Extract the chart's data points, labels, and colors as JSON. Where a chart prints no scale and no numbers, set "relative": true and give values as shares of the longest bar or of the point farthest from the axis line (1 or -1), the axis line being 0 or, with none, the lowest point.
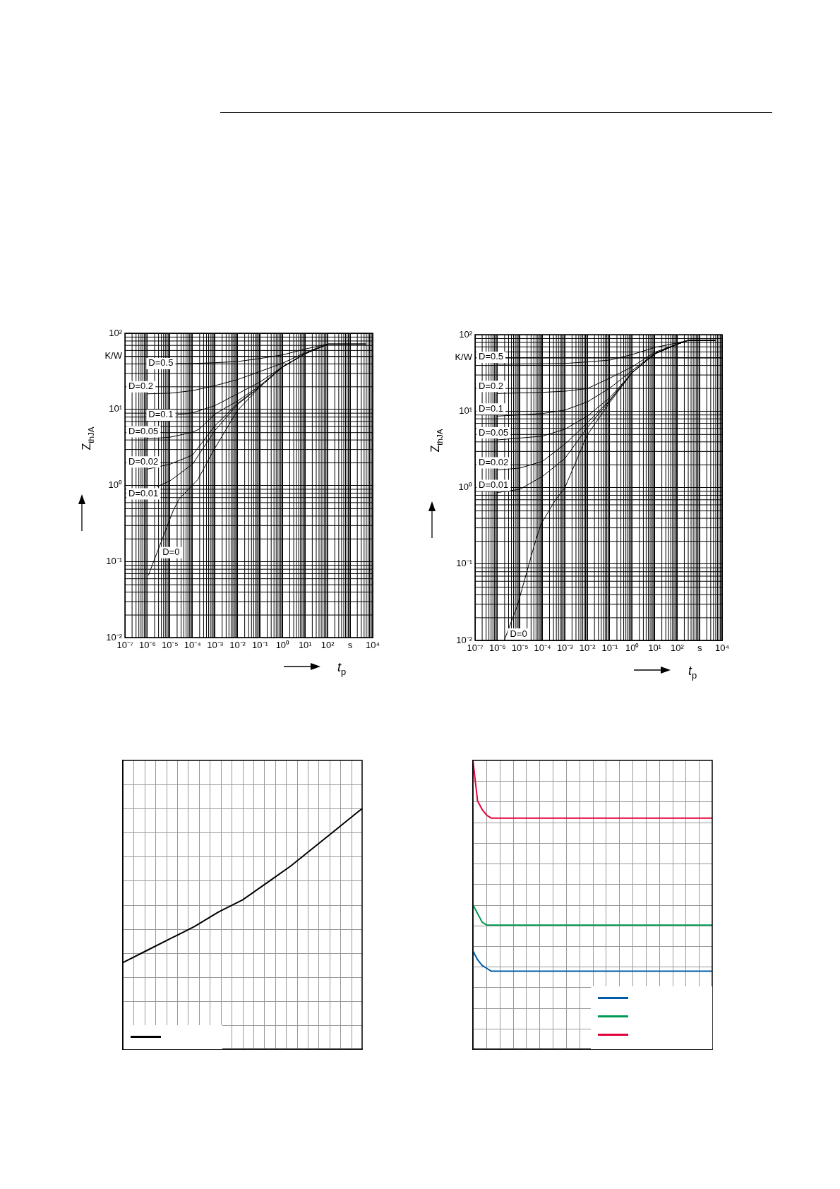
{
  "chart_data": [
    {
      "type": "line",
      "xlabel": "t$_{p}$",
      "ylabel": "Z$_{thJA}$",
      "log": "xy",
      "grid": true,
      "legend": false,
      "marker": "none",
      "xlim": [
        1e-07,
        10000.0
      ],
      "ylim": [
        0.01,
        100
      ],
      "xticks": [
        {
          "value": 1e-07,
          "label": "10⁻⁷"
        },
        {
          "value": 1e-06,
          "label": "10⁻⁶"
        },
        {
          "value": 1e-05,
          "label": "10⁻⁵"
        },
        {
          "value": 0.0001,
          "label": "10⁻⁴"
        },
        {
          "value": 0.001,
          "label": "10⁻³"
        },
        {
          "value": 0.01,
          "label": "10⁻²"
        },
        {
          "value": 0.1,
          "label": "10⁻¹"
        },
        {
          "value": 1,
          "label": "10⁰"
        },
        {
          "value": 10,
          "label": "10¹"
        },
        {
          "value": 100,
          "label": "10²"
        },
        {
          "value": 1000,
          "label": "s"
        },
        {
          "value": 10000.0,
          "label": "10⁴"
        }
      ],
      "yticks": [
        {
          "value": 0.01,
          "label": "10⁻²"
        },
        {
          "value": 0.1,
          "label": "10⁻¹"
        },
        {
          "value": 1,
          "label": "10⁰"
        },
        {
          "value": 10,
          "label": "10¹"
        },
        {
          "value": 50,
          "label": "K/W"
        },
        {
          "value": 100,
          "label": "10²"
        }
      ],
      "series": [
        {
          "name": "D=0.5",
          "color": "#000000",
          "x": [
            2e-05,
            0.0001,
            0.001,
            0.01,
            0.1,
            1,
            10,
            100,
            1000,
            5000
          ],
          "values": [
            40,
            40,
            41,
            42.5,
            46.6,
            52,
            62,
            72,
            72,
            72
          ]
        },
        {
          "name": "D=0.2",
          "color": "#000000",
          "x": [
            1e-06,
            1e-05,
            0.0001,
            0.001,
            0.01,
            0.1,
            1,
            10,
            100,
            1000,
            5000
          ],
          "values": [
            16,
            16.3,
            17.6,
            20.5,
            24.6,
            31.5,
            40.4,
            55.8,
            72,
            72,
            72
          ]
        },
        {
          "name": "D=0.1",
          "color": "#000000",
          "x": [
            2e-05,
            0.0001,
            0.001,
            0.01,
            0.1,
            1,
            10,
            100,
            1000,
            5000
          ],
          "values": [
            8.4,
            9,
            11.2,
            16,
            22.9,
            36.3,
            53.8,
            72,
            72,
            72
          ]
        },
        {
          "name": "D=0.05",
          "color": "#000000",
          "x": [
            1e-06,
            1e-05,
            0.0001,
            0.0002,
            0.001,
            0.01,
            0.1,
            1,
            10,
            100,
            1000,
            5000
          ],
          "values": [
            4.1,
            4.3,
            5,
            5.5,
            8.7,
            12.9,
            20.6,
            36.3,
            53.8,
            72,
            72,
            72
          ]
        },
        {
          "name": "D=0.02",
          "color": "#000000",
          "x": [
            1e-06,
            1e-05,
            0.0001,
            0.001,
            0.01,
            0.1,
            1,
            10,
            100,
            1000,
            5000
          ],
          "values": [
            1.64,
            1.9,
            2.5,
            6.1,
            12,
            19.8,
            36,
            53.8,
            72,
            72,
            72
          ]
        },
        {
          "name": "D=0.01",
          "color": "#000000",
          "x": [
            2.6e-06,
            1e-05,
            0.0001,
            0.001,
            0.01,
            0.1,
            1,
            10,
            100,
            1000,
            5000
          ],
          "values": [
            0.96,
            1.15,
            1.9,
            5.3,
            11.6,
            19.8,
            36,
            53.8,
            72,
            72,
            72
          ]
        },
        {
          "name": "D=0",
          "color": "#000000",
          "x": [
            1.1e-06,
            1.4e-05,
            2.6e-05,
            0.00017,
            0.00093,
            0.01,
            0.1,
            1,
            10,
            100,
            1000,
            5000
          ],
          "values": [
            0.066,
            0.47,
            0.67,
            1.19,
            3,
            9.7,
            19.8,
            36,
            53.8,
            72,
            72,
            72
          ]
        }
      ]
    },
    {
      "type": "line",
      "xlabel": "t$_{p}$",
      "ylabel": "Z$_{thJA}$",
      "log": "xy",
      "grid": true,
      "legend": false,
      "marker": "none",
      "xlim": [
        1e-07,
        10000.0
      ],
      "ylim": [
        0.01,
        100
      ],
      "xticks": [
        {
          "value": 1e-07,
          "label": "10⁻⁷"
        },
        {
          "value": 1e-06,
          "label": "10⁻⁶"
        },
        {
          "value": 1e-05,
          "label": "10⁻⁵"
        },
        {
          "value": 0.0001,
          "label": "10⁻⁴"
        },
        {
          "value": 0.001,
          "label": "10⁻³"
        },
        {
          "value": 0.01,
          "label": "10⁻²"
        },
        {
          "value": 0.1,
          "label": "10⁻¹"
        },
        {
          "value": 1,
          "label": "10⁰"
        },
        {
          "value": 10,
          "label": "10¹"
        },
        {
          "value": 100,
          "label": "10²"
        },
        {
          "value": 1000,
          "label": "s"
        },
        {
          "value": 10000.0,
          "label": "10⁴"
        }
      ],
      "yticks": [
        {
          "value": 0.01,
          "label": "10⁻²"
        },
        {
          "value": 0.1,
          "label": "10⁻¹"
        },
        {
          "value": 1,
          "label": "10⁰"
        },
        {
          "value": 10,
          "label": "10¹"
        },
        {
          "value": 50,
          "label": "K/W"
        },
        {
          "value": 100,
          "label": "10²"
        }
      ],
      "series": [
        {
          "name": "D=0.5",
          "color": "#000000",
          "x": [
            1e-06,
            0.001,
            0.01,
            0.1,
            1,
            10,
            100,
            300,
            5000
          ],
          "values": [
            41,
            42,
            44,
            46.5,
            55,
            68,
            78,
            84,
            84
          ]
        },
        {
          "name": "D=0.2",
          "color": "#000000",
          "x": [
            1e-06,
            0.0001,
            0.001,
            0.01,
            0.1,
            1,
            10,
            100,
            300,
            5000
          ],
          "values": [
            17,
            17.6,
            18.2,
            19.7,
            27,
            38,
            59,
            75,
            84,
            84
          ]
        },
        {
          "name": "D=0.1",
          "color": "#000000",
          "x": [
            1e-06,
            0.0001,
            0.001,
            0.01,
            0.1,
            1,
            10,
            100,
            300,
            5000
          ],
          "values": [
            8.6,
            9.3,
            10.3,
            13.2,
            20,
            34,
            57,
            75,
            84,
            84
          ]
        },
        {
          "name": "D=0.05",
          "color": "#000000",
          "x": [
            1e-06,
            0.0001,
            0.001,
            0.01,
            0.1,
            1,
            10,
            100,
            300,
            5000
          ],
          "values": [
            4.2,
            4.7,
            5.8,
            8.6,
            15,
            32,
            56,
            75,
            84,
            84
          ]
        },
        {
          "name": "D=0.02",
          "color": "#000000",
          "x": [
            1e-06,
            1e-05,
            0.0001,
            0.001,
            0.01,
            0.1,
            1,
            10,
            100,
            300,
            5000
          ],
          "values": [
            1.7,
            1.8,
            2.2,
            3.7,
            7,
            14,
            32,
            56,
            75,
            84,
            84
          ]
        },
        {
          "name": "D=0.01",
          "color": "#000000",
          "x": [
            1e-06,
            1e-05,
            0.0001,
            0.001,
            0.01,
            0.1,
            1,
            10,
            100,
            300,
            5000
          ],
          "values": [
            0.86,
            0.95,
            1.4,
            2.4,
            6.1,
            13.7,
            32,
            56,
            75,
            84,
            84
          ]
        },
        {
          "name": "D=0",
          "color": "#000000",
          "x": [
            2e-06,
            7.8e-06,
            4.2e-05,
            8.5e-05,
            0.00036,
            0.001,
            0.01,
            0.1,
            1,
            10,
            100,
            300,
            5000
          ],
          "values": [
            0.01,
            0.029,
            0.17,
            0.33,
            0.67,
            1,
            4.9,
            13,
            32,
            56,
            75,
            84,
            84
          ]
        }
      ]
    },
    {
      "type": "line",
      "relative": true,
      "tick_labels": false,
      "grid": true,
      "marker": "none",
      "categories": [
        null,
        null,
        null,
        null,
        null,
        null,
        null,
        null,
        null,
        null,
        null
      ],
      "series": [
        {
          "color": "#000000",
          "values": [
            0.36,
            0.41,
            0.46,
            0.51,
            0.57,
            0.62,
            0.69,
            0.76,
            0.84,
            0.92,
            1
          ]
        }
      ]
    },
    {
      "type": "line",
      "relative": true,
      "tick_labels": false,
      "grid": true,
      "marker": "none",
      "categories": [
        null,
        null,
        null,
        null,
        null,
        null,
        null,
        null,
        null,
        null,
        null,
        null,
        null,
        null,
        null,
        null,
        null,
        null,
        null,
        null,
        null,
        null,
        null,
        null,
        null,
        null,
        null,
        null,
        null,
        null,
        null,
        null,
        null,
        null,
        null,
        null,
        null,
        null,
        null,
        null,
        null,
        null,
        null,
        null,
        null,
        null,
        null,
        null,
        null,
        null,
        null,
        null,
        null
      ],
      "series": [
        {
          "color": "#005ca9",
          "values": [
            0.34,
            0.31,
            0.29,
            0.28,
            0.27,
            0.27,
            0.27,
            0.27,
            0.27,
            0.27,
            0.27,
            0.27,
            0.27,
            0.27,
            0.27,
            0.27,
            0.27,
            0.27,
            0.27,
            0.27,
            0.27,
            0.27,
            0.27,
            0.27,
            0.27,
            0.27,
            0.27,
            0.27,
            0.27,
            0.27,
            0.27,
            0.27,
            0.27,
            0.27,
            0.27,
            0.27,
            0.27,
            0.27,
            0.27,
            0.27,
            0.27,
            0.27,
            0.27,
            0.27,
            0.27,
            0.27,
            0.27,
            0.27,
            0.27,
            0.27,
            0.27,
            0.27,
            0.27
          ]
        },
        {
          "color": "#009a55",
          "values": [
            0.5,
            0.47,
            0.44,
            0.43,
            0.43,
            0.43,
            0.43,
            0.43,
            0.43,
            0.43,
            0.43,
            0.43,
            0.43,
            0.43,
            0.43,
            0.43,
            0.43,
            0.43,
            0.43,
            0.43,
            0.43,
            0.43,
            0.43,
            0.43,
            0.43,
            0.43,
            0.43,
            0.43,
            0.43,
            0.43,
            0.43,
            0.43,
            0.43,
            0.43,
            0.43,
            0.43,
            0.43,
            0.43,
            0.43,
            0.43,
            0.43,
            0.43,
            0.43,
            0.43,
            0.43,
            0.43,
            0.43,
            0.43,
            0.43,
            0.43,
            0.43,
            0.43,
            0.43
          ]
        },
        {
          "color": "#e4003a",
          "values": [
            1,
            0.86,
            0.83,
            0.81,
            0.8,
            0.8,
            0.8,
            0.8,
            0.8,
            0.8,
            0.8,
            0.8,
            0.8,
            0.8,
            0.8,
            0.8,
            0.8,
            0.8,
            0.8,
            0.8,
            0.8,
            0.8,
            0.8,
            0.8,
            0.8,
            0.8,
            0.8,
            0.8,
            0.8,
            0.8,
            0.8,
            0.8,
            0.8,
            0.8,
            0.8,
            0.8,
            0.8,
            0.8,
            0.8,
            0.8,
            0.8,
            0.8,
            0.8,
            0.8,
            0.8,
            0.8,
            0.8,
            0.8,
            0.8,
            0.8,
            0.8,
            0.8,
            0.8
          ]
        }
      ]
    }
  ]
}
